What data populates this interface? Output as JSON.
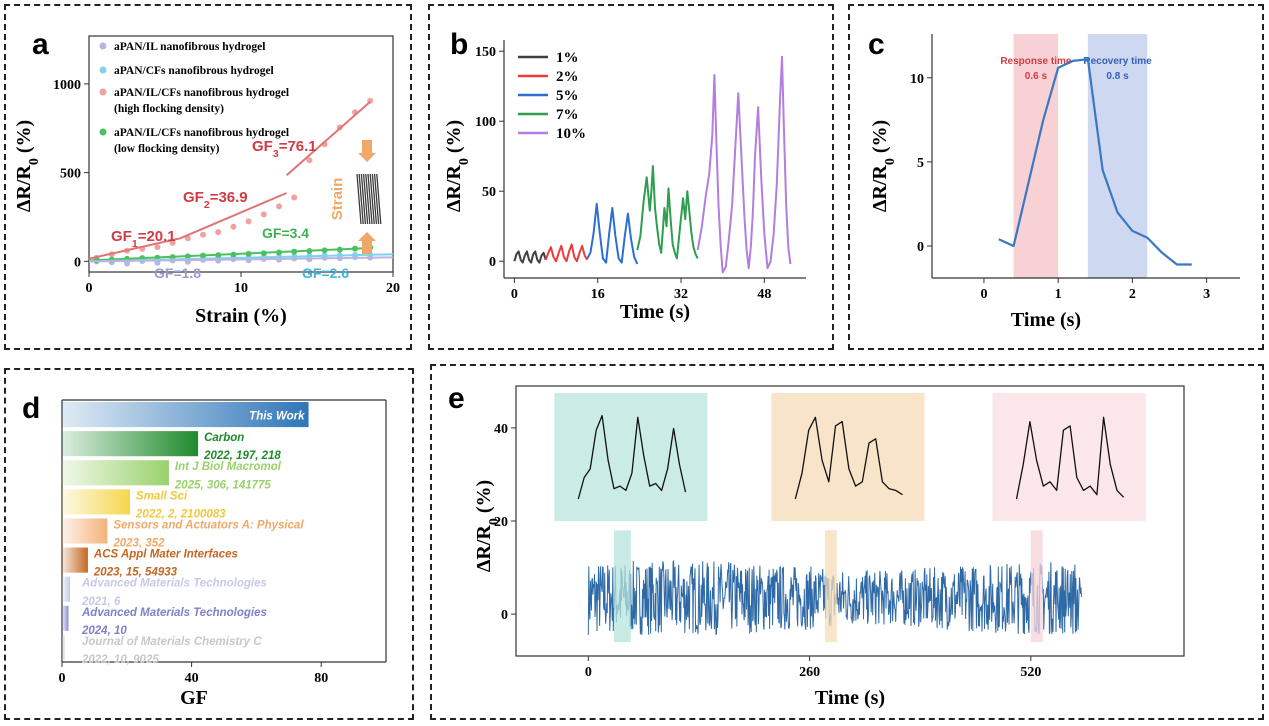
{
  "chart_data": [
    {
      "panel": "a",
      "type": "scatter",
      "xlabel": "Strain (%)",
      "ylabel": "ΔR/R",
      "ylabel_sub": "0",
      "ylabel_unit": " (%)",
      "xlim": [
        0,
        20
      ],
      "ylim": [
        -60,
        1270
      ],
      "xticks": [
        0,
        10,
        20
      ],
      "yticks": [
        0,
        500,
        1000
      ],
      "legend": [
        {
          "label": "aPAN/IL nanofibrous hydrogel",
          "color": "#b9b5e0"
        },
        {
          "label": "aPAN/CFs nanofibrous hydrogel",
          "color": "#7fd1ee"
        },
        {
          "label": "aPAN/IL/CFs nanofibrous hydrogel",
          "label2": "(high flocking density)",
          "color": "#f1a1a1"
        },
        {
          "label": "aPAN/IL/CFs nanofibrous hydrogel",
          "label2": "(low flocking density)",
          "color": "#4cc061"
        }
      ],
      "series": [
        {
          "name": "aPAN/IL",
          "color": "#b9b5e0",
          "x": [
            0.5,
            1.5,
            2.5,
            3.5,
            4.5,
            5.5,
            6.5,
            7.5,
            8.5,
            9.5,
            10.5,
            11.5,
            12.5,
            13.5,
            14.5,
            15.5,
            16.5,
            17.5,
            18.5
          ],
          "y": [
            0,
            -5,
            -12,
            2,
            -8,
            5,
            -3,
            8,
            4,
            12,
            6,
            14,
            10,
            16,
            12,
            20,
            18,
            24,
            22
          ]
        },
        {
          "name": "aPAN/CFs",
          "color": "#7fd1ee",
          "x": [
            0.5,
            1.5,
            2.5,
            3.5,
            4.5,
            5.5,
            6.5,
            7.5,
            8.5,
            9.5,
            10.5,
            11.5,
            12.5,
            13.5,
            14.5,
            15.5,
            16.5,
            17.5,
            18.5
          ],
          "y": [
            2,
            4,
            6,
            8,
            10,
            12,
            14,
            16,
            18,
            20,
            22,
            24,
            26,
            28,
            30,
            32,
            34,
            36,
            38
          ]
        },
        {
          "name": "high",
          "color": "#f1a1a1",
          "x": [
            0.5,
            1.5,
            2.5,
            3.5,
            4.5,
            5.5,
            6.5,
            7.5,
            8.5,
            9.5,
            10.5,
            11.5,
            12.5,
            13.5,
            14.5,
            15.5,
            16.5,
            17.5,
            18.5
          ],
          "y": [
            20,
            40,
            60,
            70,
            80,
            105,
            130,
            150,
            165,
            195,
            225,
            265,
            310,
            360,
            570,
            660,
            755,
            840,
            905
          ]
        },
        {
          "name": "low",
          "color": "#4cc061",
          "x": [
            0.5,
            1.5,
            2.5,
            3.5,
            4.5,
            5.5,
            6.5,
            7.5,
            8.5,
            9.5,
            10.5,
            11.5,
            12.5,
            13.5,
            14.5,
            15.5,
            16.5,
            17.5,
            18.5
          ],
          "y": [
            5,
            10,
            14,
            18,
            20,
            24,
            28,
            32,
            35,
            38,
            42,
            46,
            50,
            55,
            58,
            62,
            66,
            72,
            78
          ]
        }
      ],
      "fit_lines": [
        {
          "color": "#e07474",
          "x": [
            0,
            6
          ],
          "y": [
            15,
            130
          ]
        },
        {
          "color": "#e07474",
          "x": [
            6,
            13
          ],
          "y": [
            130,
            385
          ]
        },
        {
          "color": "#e07474",
          "x": [
            13,
            18.5
          ],
          "y": [
            485,
            900
          ]
        },
        {
          "color": "#4cc061",
          "x": [
            0,
            18.5
          ],
          "y": [
            5,
            75
          ]
        },
        {
          "color": "#7fd1ee",
          "x": [
            0,
            20
          ],
          "y": [
            0,
            40
          ]
        },
        {
          "color": "#b9b5e0",
          "x": [
            0,
            20
          ],
          "y": [
            0,
            22
          ]
        }
      ],
      "annotations": [
        {
          "text": "GF",
          "sub": "1",
          "val": "=20.1",
          "color": "#d23b43"
        },
        {
          "text": "GF",
          "sub": "2",
          "val": "=36.9",
          "color": "#d23b43"
        },
        {
          "text": "GF",
          "sub": "3",
          "val": "=76.1",
          "color": "#d23b43"
        },
        {
          "text": "GF=3.4",
          "color": "#3fb04f"
        },
        {
          "text": "GF=1.8",
          "color": "#9a9ad1"
        },
        {
          "text": "GF=2.6",
          "color": "#3fb4e0"
        },
        {
          "text": "Strain",
          "color": "#f0a868"
        }
      ],
      "panel_label": "a"
    },
    {
      "panel": "b",
      "type": "line",
      "xlabel": "Time (s)",
      "ylabel": "ΔR/R",
      "ylabel_sub": "0",
      "ylabel_unit": " (%)",
      "xlim": [
        -2,
        56
      ],
      "ylim": [
        -12,
        158
      ],
      "xticks": [
        0,
        16,
        32,
        48
      ],
      "yticks": [
        0,
        50,
        100,
        150
      ],
      "legend": [
        {
          "label": "1%",
          "color": "#404040"
        },
        {
          "label": "2%",
          "color": "#ee3b3b"
        },
        {
          "label": "5%",
          "color": "#2b6fd1"
        },
        {
          "label": "7%",
          "color": "#2e9e4f"
        },
        {
          "label": "10%",
          "color": "#b27ee0"
        }
      ],
      "series": [
        {
          "name": "1%",
          "color": "#404040",
          "x": [
            0,
            0.4,
            0.8,
            1.2,
            1.6,
            2.0,
            2.4,
            2.8,
            3.2,
            3.6,
            4.0,
            4.4,
            4.8,
            5.2,
            5.6,
            6.0
          ],
          "y": [
            0,
            5,
            7,
            1,
            -1,
            4,
            7,
            1,
            -1,
            5,
            7,
            1,
            -1,
            4,
            6,
            1
          ]
        },
        {
          "name": "2%",
          "color": "#ee3b3b",
          "x": [
            6,
            6.5,
            7,
            7.5,
            8,
            8.5,
            9,
            9.5,
            10,
            10.5,
            11,
            11.5,
            12,
            12.5,
            13,
            13.5,
            14
          ],
          "y": [
            1,
            6,
            10,
            3,
            0,
            6,
            11,
            3,
            0,
            7,
            12,
            3,
            0,
            6,
            11,
            4,
            1
          ]
        },
        {
          "name": "5%",
          "color": "#2b6fd1",
          "x": [
            14,
            14.6,
            15.2,
            15.8,
            16.4,
            17.0,
            17.6,
            18.2,
            18.8,
            19.4,
            20.0,
            20.6,
            21.2,
            21.8,
            22.4,
            23.0,
            23.6
          ],
          "y": [
            2,
            6,
            20,
            41,
            20,
            2,
            -1,
            20,
            38,
            18,
            2,
            -1,
            18,
            34,
            16,
            3,
            -2
          ]
        },
        {
          "name": "7%",
          "color": "#2e9e4f",
          "x": [
            23.6,
            24.2,
            24.8,
            25.4,
            26.0,
            26.3,
            26.6,
            27.0,
            27.4,
            27.8,
            28.2,
            28.8,
            29.2,
            29.6,
            30.0,
            30.4,
            30.8,
            31.2,
            31.8,
            32.4,
            32.8,
            33.2,
            33.6,
            34.0,
            34.4,
            34.8,
            35.2
          ],
          "y": [
            8,
            18,
            42,
            60,
            36,
            50,
            68,
            38,
            24,
            12,
            6,
            38,
            25,
            52,
            30,
            12,
            6,
            2,
            24,
            45,
            30,
            50,
            35,
            20,
            10,
            5,
            2
          ]
        },
        {
          "name": "10%",
          "color": "#b27ee0",
          "x": [
            35.2,
            36.0,
            36.8,
            37.4,
            38.0,
            38.4,
            38.8,
            39.2,
            39.6,
            40.0,
            40.6,
            41.2,
            41.8,
            42.4,
            43.0,
            43.6,
            44.2,
            44.6,
            45.0,
            45.4,
            45.8,
            46.2,
            46.8,
            47.4,
            48.0,
            48.6,
            49.2,
            49.8,
            50.4,
            51.0,
            51.4,
            51.8,
            52.2,
            52.6,
            53.0
          ],
          "y": [
            8,
            25,
            48,
            62,
            90,
            133,
            85,
            40,
            12,
            -8,
            -4,
            16,
            40,
            80,
            120,
            75,
            30,
            8,
            -5,
            10,
            35,
            75,
            110,
            60,
            20,
            -5,
            0,
            20,
            55,
            115,
            146,
            90,
            40,
            10,
            -2
          ]
        }
      ],
      "panel_label": "b"
    },
    {
      "panel": "c",
      "type": "line",
      "xlabel": "Time (s)",
      "ylabel": "ΔR/R",
      "ylabel_sub": "0",
      "ylabel_unit": " (%)",
      "xlim": [
        -0.7,
        3.45
      ],
      "ylim": [
        -1.9,
        12.6
      ],
      "xticks": [
        0,
        1,
        2,
        3
      ],
      "yticks": [
        0,
        5,
        10
      ],
      "series": [
        {
          "name": "response",
          "color": "#3a78c2",
          "x": [
            0.2,
            0.4,
            0.8,
            1.0,
            1.2,
            1.4,
            1.6,
            1.8,
            2.0,
            2.2,
            2.4,
            2.6,
            2.8
          ],
          "y": [
            0.4,
            0.0,
            7.5,
            10.6,
            11.0,
            11.1,
            4.5,
            2.0,
            0.9,
            0.5,
            -0.4,
            -1.1,
            -1.1
          ]
        }
      ],
      "bands": [
        {
          "x": [
            0.4,
            1.0
          ],
          "color": "#f6c9cd",
          "title": "Response time",
          "value": "0.6 s",
          "text_color": "#d23b43"
        },
        {
          "x": [
            1.4,
            2.2
          ],
          "color": "#c5d1ef",
          "title": "Recovery time",
          "value": "0.8 s",
          "text_color": "#3660ba"
        }
      ],
      "panel_label": "c"
    },
    {
      "panel": "d",
      "type": "bar",
      "orientation": "horizontal",
      "xlabel": "GF",
      "xlim": [
        0,
        100
      ],
      "xticks": [
        0,
        40,
        80
      ],
      "categories": [
        "This Work",
        "Carbon",
        "Int J Biol Macromol",
        "Small Sci",
        "Sensors and Actuators A: Physical",
        "ACS Appl Mater Interfaces",
        "Advanced Materials Technologies",
        "Advanced Materials Technologies",
        "Journal of Materials Chemistry C"
      ],
      "refs": [
        "",
        "2022, 197, 218",
        "2025, 306, 141775",
        "2022, 2, 2100083",
        "2023, 352",
        "2023, 15, 54933",
        "2021, 6",
        "2024, 10",
        "2022, 10, 9025"
      ],
      "values": [
        76.1,
        42,
        33,
        21,
        14,
        8,
        2.5,
        2,
        0.8
      ],
      "colors": [
        "#2f76b9",
        "#1f8a2c",
        "#9ad16c",
        "#f6d64b",
        "#f3b27a",
        "#c56722",
        "#c6c9e8",
        "#8b8fd2",
        "#d6d6d6"
      ],
      "text_colors": [
        "#ffffff",
        "#1f8a2c",
        "#9ad16c",
        "#f0c93a",
        "#f0a868",
        "#c56722",
        "#c6c9e8",
        "#7d82cb",
        "#c8c8c8"
      ],
      "panel_label": "d"
    },
    {
      "panel": "e",
      "type": "line",
      "xlabel": "Time (s)",
      "ylabel": "ΔR/R",
      "ylabel_sub": "0",
      "ylabel_unit": " (%)",
      "xlim": [
        -85,
        700
      ],
      "ylim": [
        -9,
        49
      ],
      "xticks": [
        0,
        260,
        520
      ],
      "yticks": [
        0,
        20,
        40
      ],
      "series_color": "#2f6aa6",
      "signal_range": [
        0,
        580
      ],
      "signal_baseline": 3.5,
      "signal_amplitude": 8,
      "highlights": [
        {
          "x": [
            30,
            50
          ],
          "color": "#b7e4dc"
        },
        {
          "x": [
            278,
            292
          ],
          "color": "#f7dcb8"
        },
        {
          "x": [
            520,
            534
          ],
          "color": "#f6d1da"
        }
      ],
      "insets": [
        {
          "x": [
            -40,
            140
          ],
          "y": [
            20,
            47.5
          ],
          "color": "#cbece6",
          "trace": [
            0.0,
            0.25,
            0.35,
            0.8,
            0.97,
            0.45,
            0.12,
            0.15,
            0.1,
            0.3,
            0.95,
            0.5,
            0.15,
            0.18,
            0.1,
            0.35,
            0.82,
            0.4,
            0.08
          ]
        },
        {
          "x": [
            215,
            395
          ],
          "y": [
            20,
            47.5
          ],
          "color": "#f8e4c8",
          "trace": [
            0.0,
            0.3,
            0.8,
            0.95,
            0.45,
            0.2,
            0.85,
            0.9,
            0.35,
            0.15,
            0.2,
            0.65,
            0.7,
            0.2,
            0.12,
            0.1,
            0.05
          ]
        },
        {
          "x": [
            475,
            655
          ],
          "y": [
            20,
            47.5
          ],
          "color": "#fbe7ea",
          "trace": [
            0.0,
            0.4,
            0.9,
            0.45,
            0.15,
            0.2,
            0.1,
            0.8,
            0.85,
            0.25,
            0.1,
            0.15,
            0.05,
            0.95,
            0.4,
            0.1,
            0.02
          ]
        }
      ],
      "panel_label": "e"
    }
  ]
}
